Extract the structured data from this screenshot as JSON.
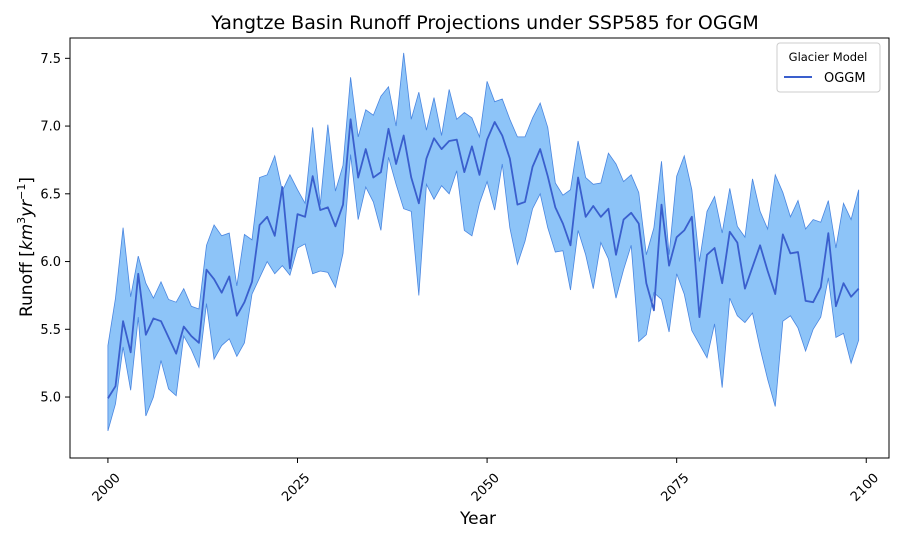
{
  "chart_data": {
    "type": "area",
    "title": "Yangtze Basin Runoff Projections under SSP585 for OGGM",
    "xlabel": "Year",
    "ylabel_main": "Runoff [",
    "ylabel_km": "km",
    "ylabel_sup3": "3",
    "ylabel_yr": "yr",
    "ylabel_supm1": "−1",
    "ylabel_close": "]",
    "xlim": [
      1995,
      2103
    ],
    "ylim": [
      4.55,
      7.65
    ],
    "x_ticks": [
      2000,
      2025,
      2050,
      2075,
      2100
    ],
    "x_tick_labels": [
      "2000",
      "2025",
      "2050",
      "2075",
      "2100"
    ],
    "y_ticks": [
      5.0,
      5.5,
      6.0,
      6.5,
      7.0,
      7.5
    ],
    "y_tick_labels": [
      "5.0",
      "5.5",
      "6.0",
      "6.5",
      "7.0",
      "7.5"
    ],
    "legend": {
      "title": "Glacier Model",
      "position": "top-right"
    },
    "colors": {
      "line": "#3a5fcd",
      "fill": "#8dc4f8",
      "fill_edge": "#4a86e0"
    },
    "series": [
      {
        "name": "OGGM",
        "x": [
          2000,
          2001,
          2002,
          2003,
          2004,
          2005,
          2006,
          2007,
          2008,
          2009,
          2010,
          2011,
          2012,
          2013,
          2014,
          2015,
          2016,
          2017,
          2018,
          2019,
          2020,
          2021,
          2022,
          2023,
          2024,
          2025,
          2026,
          2027,
          2028,
          2029,
          2030,
          2031,
          2032,
          2033,
          2034,
          2035,
          2036,
          2037,
          2038,
          2039,
          2040,
          2041,
          2042,
          2043,
          2044,
          2045,
          2046,
          2047,
          2048,
          2049,
          2050,
          2051,
          2052,
          2053,
          2054,
          2055,
          2056,
          2057,
          2058,
          2059,
          2060,
          2061,
          2062,
          2063,
          2064,
          2065,
          2066,
          2067,
          2068,
          2069,
          2070,
          2071,
          2072,
          2073,
          2074,
          2075,
          2076,
          2077,
          2078,
          2079,
          2080,
          2081,
          2082,
          2083,
          2084,
          2085,
          2086,
          2087,
          2088,
          2089,
          2090,
          2091,
          2092,
          2093,
          2094,
          2095,
          2096,
          2097,
          2098,
          2099
        ],
        "mean": [
          4.99,
          5.08,
          5.56,
          5.33,
          5.91,
          5.46,
          5.58,
          5.56,
          5.44,
          5.32,
          5.52,
          5.45,
          5.4,
          5.94,
          5.87,
          5.77,
          5.89,
          5.6,
          5.7,
          5.85,
          6.27,
          6.33,
          6.19,
          6.55,
          5.95,
          6.35,
          6.33,
          6.63,
          6.38,
          6.4,
          6.26,
          6.42,
          7.05,
          6.62,
          6.83,
          6.62,
          6.66,
          6.98,
          6.72,
          6.93,
          6.62,
          6.43,
          6.76,
          6.91,
          6.83,
          6.89,
          6.9,
          6.66,
          6.85,
          6.64,
          6.9,
          7.03,
          6.93,
          6.76,
          6.42,
          6.44,
          6.7,
          6.83,
          6.63,
          6.4,
          6.28,
          6.12,
          6.62,
          6.33,
          6.41,
          6.33,
          6.39,
          6.05,
          6.31,
          6.36,
          6.28,
          5.84,
          5.64,
          6.42,
          5.97,
          6.18,
          6.23,
          6.33,
          5.59,
          6.05,
          6.1,
          5.84,
          6.22,
          6.14,
          5.8,
          5.96,
          6.12,
          5.93,
          5.76,
          6.2,
          6.06,
          6.07,
          5.71,
          5.7,
          5.81,
          6.21,
          5.67,
          5.84,
          5.74,
          5.8
        ],
        "upper": [
          5.38,
          5.73,
          6.25,
          5.74,
          6.04,
          5.84,
          5.73,
          5.85,
          5.72,
          5.7,
          5.8,
          5.67,
          5.65,
          6.12,
          6.27,
          6.19,
          6.21,
          5.82,
          6.2,
          6.16,
          6.62,
          6.64,
          6.78,
          6.52,
          6.64,
          6.53,
          6.43,
          6.99,
          6.42,
          7.01,
          6.52,
          6.71,
          7.36,
          6.92,
          7.12,
          7.08,
          7.22,
          7.29,
          7.0,
          7.54,
          7.05,
          7.25,
          6.97,
          7.21,
          6.93,
          7.27,
          7.05,
          7.1,
          7.06,
          6.92,
          7.33,
          7.18,
          7.2,
          7.05,
          6.92,
          6.92,
          7.06,
          7.17,
          6.99,
          6.58,
          6.49,
          6.53,
          6.89,
          6.62,
          6.57,
          6.58,
          6.8,
          6.72,
          6.59,
          6.64,
          6.51,
          6.05,
          6.25,
          6.74,
          6.05,
          6.63,
          6.78,
          6.53,
          6.0,
          6.37,
          6.48,
          6.21,
          6.54,
          6.26,
          6.18,
          6.61,
          6.37,
          6.24,
          6.64,
          6.51,
          6.33,
          6.45,
          6.24,
          6.31,
          6.29,
          6.45,
          6.1,
          6.43,
          6.31,
          6.53
        ],
        "lower": [
          4.75,
          4.95,
          5.37,
          5.05,
          5.59,
          4.86,
          5.0,
          5.27,
          5.06,
          5.01,
          5.45,
          5.35,
          5.22,
          5.69,
          5.28,
          5.38,
          5.43,
          5.3,
          5.4,
          5.76,
          5.88,
          6.0,
          5.91,
          5.97,
          5.9,
          6.1,
          6.13,
          5.91,
          5.93,
          5.92,
          5.81,
          6.06,
          6.79,
          6.31,
          6.55,
          6.44,
          6.23,
          6.77,
          6.57,
          6.39,
          6.37,
          5.75,
          6.57,
          6.46,
          6.56,
          6.5,
          6.67,
          6.23,
          6.19,
          6.43,
          6.59,
          6.38,
          6.72,
          6.25,
          5.98,
          6.15,
          6.39,
          6.5,
          6.25,
          6.07,
          6.08,
          5.79,
          6.23,
          6.05,
          5.8,
          6.14,
          6.02,
          5.73,
          5.94,
          6.12,
          5.41,
          5.46,
          5.77,
          5.72,
          5.48,
          5.91,
          5.76,
          5.49,
          5.39,
          5.29,
          5.54,
          5.07,
          5.73,
          5.6,
          5.55,
          5.62,
          5.36,
          5.13,
          4.93,
          5.56,
          5.6,
          5.51,
          5.34,
          5.5,
          5.59,
          5.88,
          5.44,
          5.47,
          5.25,
          5.42
        ]
      }
    ]
  }
}
